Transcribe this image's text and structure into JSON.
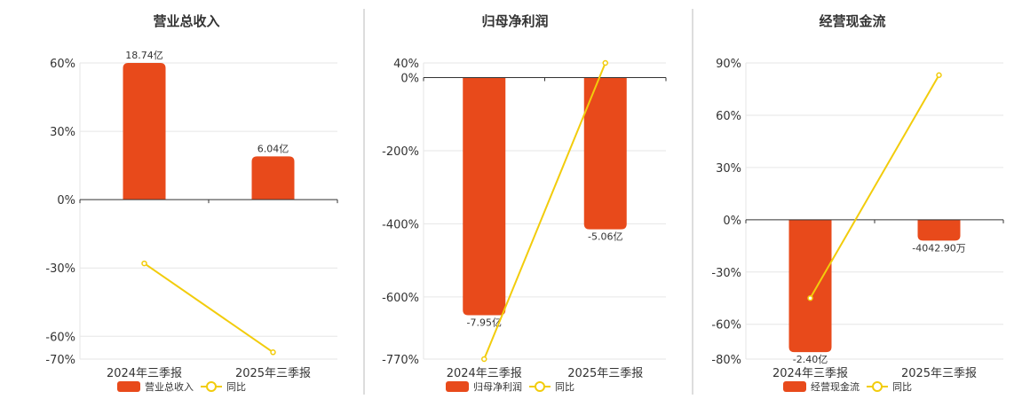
{
  "colors": {
    "bar": "#E84A1B",
    "line": "#F2CC0C",
    "grid": "#E6E6E6",
    "axis": "#333333",
    "divider": "#BBBBBB"
  },
  "legend": {
    "line_label": "同比"
  },
  "chart_data": [
    {
      "type": "bar",
      "title": "营业总收入",
      "categories": [
        "2024年三季报",
        "2025年三季报"
      ],
      "series": [
        {
          "name": "营业总收入",
          "type": "bar",
          "values": [
            60,
            19
          ],
          "labels": [
            "18.74亿",
            "6.04亿"
          ]
        },
        {
          "name": "同比",
          "type": "line",
          "values": [
            -28,
            -67
          ]
        }
      ],
      "yticks": [
        60,
        30,
        0,
        -30,
        -60,
        -70
      ],
      "ytick_labels": [
        "60%",
        "30%",
        "0%",
        "-30%",
        "-60%",
        "-70%"
      ],
      "ylim": [
        -70,
        60
      ],
      "grid": true,
      "legend_position": "bottom"
    },
    {
      "type": "bar",
      "title": "归母净利润",
      "categories": [
        "2024年三季报",
        "2025年三季报"
      ],
      "series": [
        {
          "name": "归母净利润",
          "type": "bar",
          "values": [
            -650,
            -415
          ],
          "labels": [
            "-7.95亿",
            "-5.06亿"
          ]
        },
        {
          "name": "同比",
          "type": "line",
          "values": [
            -770,
            40
          ]
        }
      ],
      "yticks": [
        40,
        0,
        -200,
        -400,
        -600,
        -770
      ],
      "ytick_labels": [
        "40%",
        "0%",
        "-200%",
        "-400%",
        "-600%",
        "-770%"
      ],
      "ylim": [
        -770,
        40
      ],
      "grid": true,
      "legend_position": "bottom"
    },
    {
      "type": "bar",
      "title": "经营现金流",
      "categories": [
        "2024年三季报",
        "2025年三季报"
      ],
      "series": [
        {
          "name": "经营现金流",
          "type": "bar",
          "values": [
            -76,
            -12
          ],
          "labels": [
            "-2.40亿",
            "-4042.90万"
          ]
        },
        {
          "name": "同比",
          "type": "line",
          "values": [
            -45,
            83
          ]
        }
      ],
      "yticks": [
        90,
        60,
        30,
        0,
        -30,
        -60,
        -80
      ],
      "ytick_labels": [
        "90%",
        "60%",
        "30%",
        "0%",
        "-30%",
        "-60%",
        "-80%"
      ],
      "ylim": [
        -80,
        90
      ],
      "grid": true,
      "legend_position": "bottom"
    }
  ]
}
